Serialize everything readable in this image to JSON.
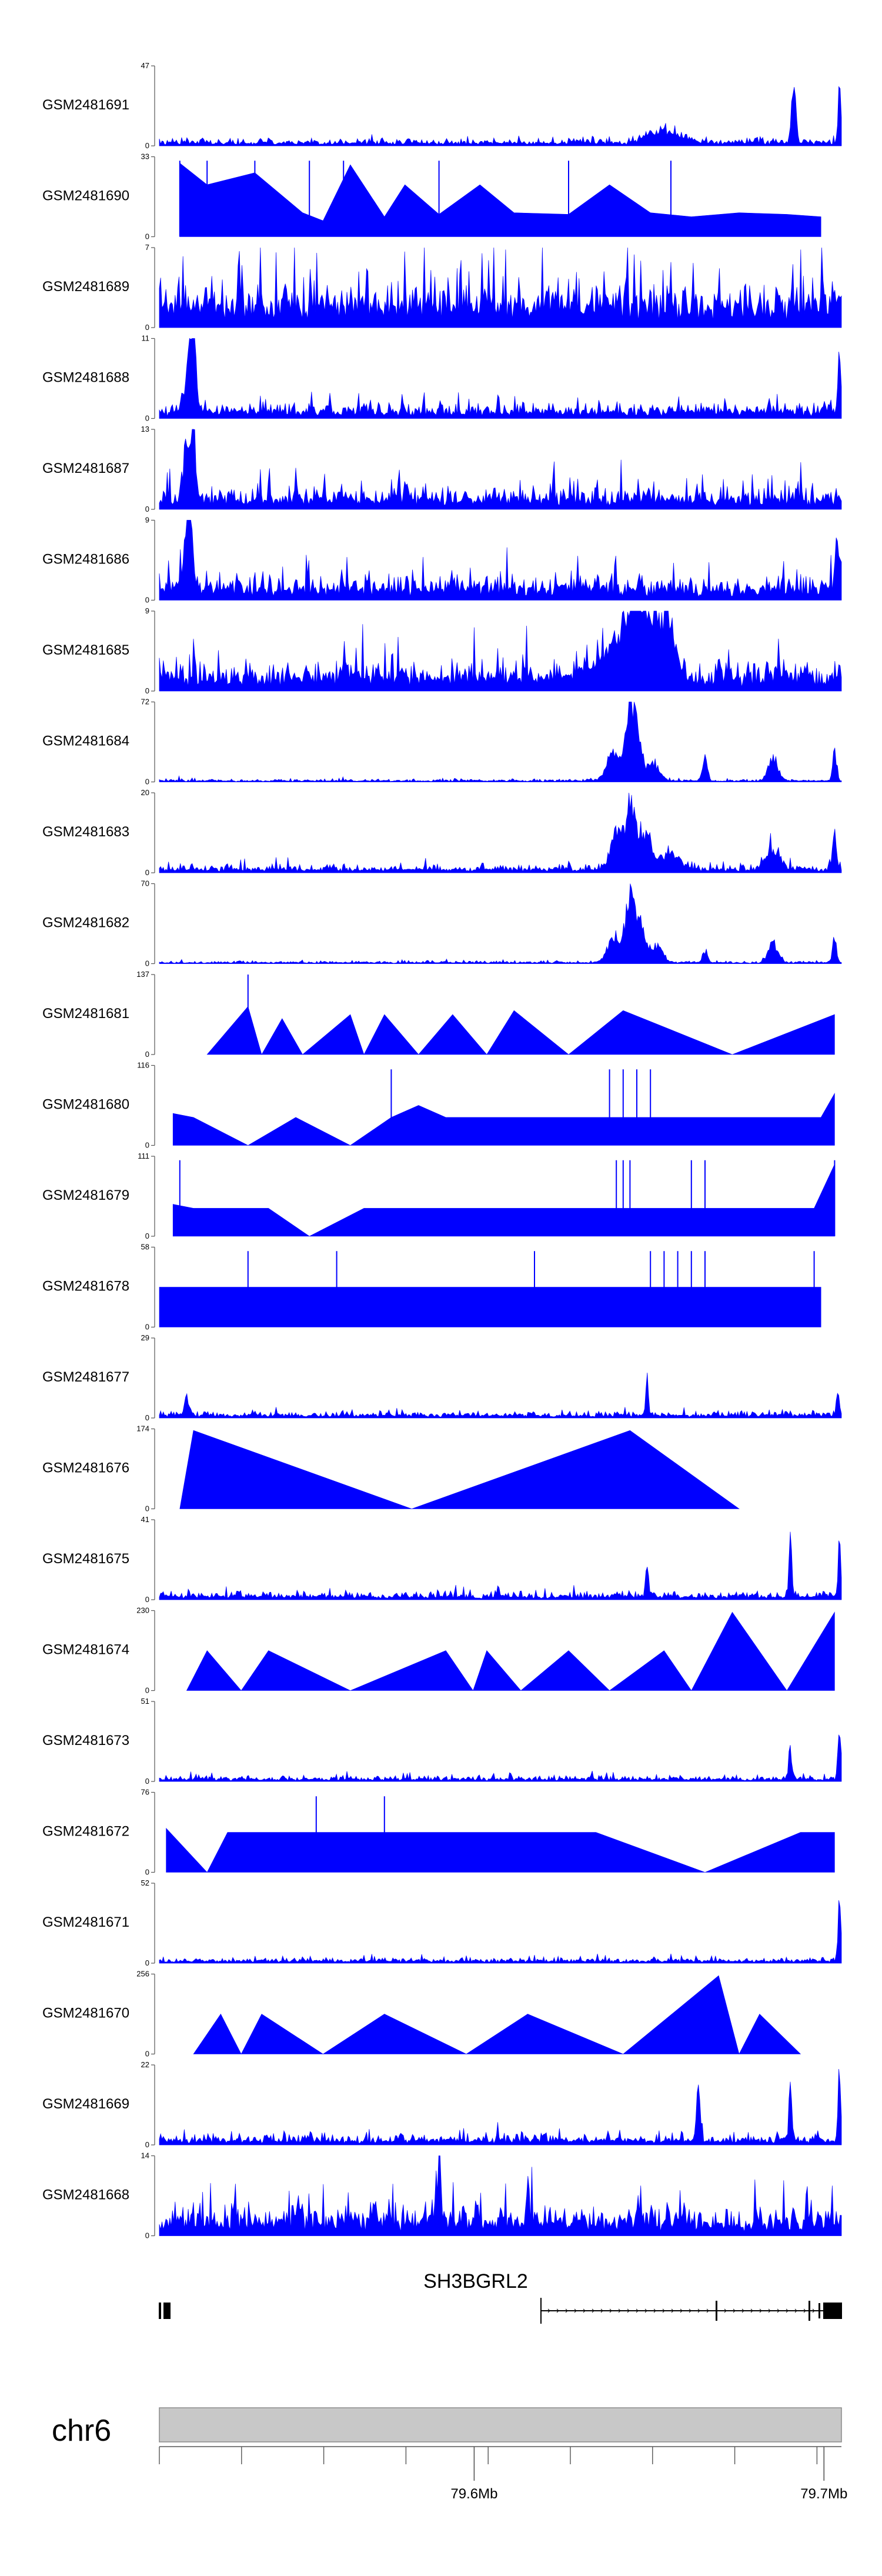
{
  "chart_data": {
    "type": "area",
    "title": "",
    "xlabel": "",
    "ylabel": "",
    "chromosome": "chr6",
    "xlim": [
      79.51,
      79.705
    ],
    "x_axis": {
      "unit": "Mb",
      "major_ticks": [
        {
          "value": 79.6,
          "label": "79.6Mb"
        },
        {
          "value": 79.7,
          "label": "79.7Mb"
        }
      ]
    },
    "gene": {
      "name": "SH3BGRL2"
    },
    "styles": {
      "signal_color": "#0000ff",
      "ideogram_color": "#c8c8c8",
      "axis_color": "#555555"
    },
    "series": [
      {
        "name": "GSM2481691",
        "ymax": 47,
        "ymax_label": "47",
        "ymin_label": "0",
        "style": "noise",
        "base": 0.06,
        "noise": 0.05,
        "peaks": [
          [
            0.72,
            0.015,
            0.15
          ],
          [
            0.74,
            0.01,
            0.15
          ],
          [
            0.765,
            0.02,
            0.12
          ],
          [
            0.93,
            0.004,
            0.97
          ],
          [
            0.997,
            0.003,
            0.8
          ]
        ]
      },
      {
        "name": "GSM2481690",
        "ymax": 33,
        "ymax_label": "33",
        "ymin_label": "0",
        "style": "triangles",
        "spikes": [
          0.03,
          0.07,
          0.14,
          0.22,
          0.27,
          0.41,
          0.6,
          0.75
        ],
        "spikeHeight": 0.95
      },
      {
        "name": "GSM2481689",
        "ymax": 7,
        "ymax_label": "7",
        "ymin_label": "0",
        "style": "noise",
        "base": 0.35,
        "noise": 0.45,
        "peaks": []
      },
      {
        "name": "GSM2481688",
        "ymax": 11,
        "ymax_label": "11",
        "ymin_label": "0",
        "style": "noise",
        "base": 0.12,
        "noise": 0.12,
        "peaks": [
          [
            0.045,
            0.01,
            0.8
          ],
          [
            0.05,
            0.005,
            0.9
          ],
          [
            0.997,
            0.003,
            0.98
          ]
        ]
      },
      {
        "name": "GSM2481687",
        "ymax": 13,
        "ymax_label": "13",
        "ymin_label": "0",
        "style": "noise",
        "base": 0.18,
        "noise": 0.2,
        "peaks": [
          [
            0.04,
            0.008,
            0.8
          ],
          [
            0.05,
            0.005,
            0.9
          ]
        ]
      },
      {
        "name": "GSM2481686",
        "ymax": 9,
        "ymax_label": "9",
        "ymin_label": "0",
        "style": "noise",
        "base": 0.18,
        "noise": 0.22,
        "peaks": [
          [
            0.04,
            0.008,
            0.7
          ],
          [
            0.045,
            0.005,
            0.95
          ],
          [
            0.995,
            0.005,
            0.9
          ]
        ]
      },
      {
        "name": "GSM2481685",
        "ymax": 9,
        "ymax_label": "9",
        "ymin_label": "0",
        "style": "noise",
        "base": 0.22,
        "noise": 0.28,
        "peaks": [
          [
            0.68,
            0.05,
            0.5
          ],
          [
            0.7,
            0.02,
            0.8
          ],
          [
            0.74,
            0.02,
            0.9
          ]
        ]
      },
      {
        "name": "GSM2481684",
        "ymax": 72,
        "ymax_label": "72",
        "ymin_label": "0",
        "style": "noise",
        "base": 0.02,
        "noise": 0.02,
        "peaks": [
          [
            0.665,
            0.012,
            0.45
          ],
          [
            0.69,
            0.01,
            0.95
          ],
          [
            0.7,
            0.012,
            0.55
          ],
          [
            0.725,
            0.012,
            0.25
          ],
          [
            0.8,
            0.005,
            0.35
          ],
          [
            0.9,
            0.01,
            0.35
          ],
          [
            0.99,
            0.004,
            0.5
          ]
        ]
      },
      {
        "name": "GSM2481683",
        "ymax": 20,
        "ymax_label": "20",
        "ymin_label": "0",
        "style": "noise",
        "base": 0.06,
        "noise": 0.06,
        "peaks": [
          [
            0.67,
            0.012,
            0.55
          ],
          [
            0.69,
            0.01,
            0.98
          ],
          [
            0.71,
            0.015,
            0.55
          ],
          [
            0.75,
            0.02,
            0.25
          ],
          [
            0.9,
            0.015,
            0.35
          ],
          [
            0.99,
            0.004,
            0.5
          ]
        ]
      },
      {
        "name": "GSM2481682",
        "ymax": 70,
        "ymax_label": "70",
        "ymin_label": "0",
        "style": "noise",
        "base": 0.02,
        "noise": 0.02,
        "peaks": [
          [
            0.665,
            0.012,
            0.4
          ],
          [
            0.69,
            0.01,
            0.97
          ],
          [
            0.705,
            0.012,
            0.55
          ],
          [
            0.73,
            0.012,
            0.25
          ],
          [
            0.8,
            0.005,
            0.2
          ],
          [
            0.9,
            0.01,
            0.3
          ],
          [
            0.99,
            0.004,
            0.4
          ]
        ]
      },
      {
        "name": "GSM2481681",
        "ymax": 137,
        "ymax_label": "137",
        "ymin_label": "0",
        "style": "triangles",
        "spikes": [
          0.13
        ],
        "spikeHeight": 1.0
      },
      {
        "name": "GSM2481680",
        "ymax": 116,
        "ymax_label": "116",
        "ymin_label": "0",
        "style": "triangles",
        "spikes": [
          0.34,
          0.66,
          0.68,
          0.7,
          0.72
        ],
        "spikeHeight": 0.95
      },
      {
        "name": "GSM2481679",
        "ymax": 111,
        "ymax_label": "111",
        "ymin_label": "0",
        "style": "triangles",
        "spikes": [
          0.03,
          0.67,
          0.68,
          0.69,
          0.78,
          0.8,
          0.99
        ],
        "spikeHeight": 0.95
      },
      {
        "name": "GSM2481678",
        "ymax": 58,
        "ymax_label": "58",
        "ymin_label": "0",
        "style": "triangles",
        "spikes": [
          0.13,
          0.26,
          0.55,
          0.72,
          0.74,
          0.76,
          0.78,
          0.8,
          0.96
        ],
        "spikeHeight": 0.95
      },
      {
        "name": "GSM2481677",
        "ymax": 29,
        "ymax_label": "29",
        "ymin_label": "0",
        "style": "noise",
        "base": 0.05,
        "noise": 0.05,
        "peaks": [
          [
            0.04,
            0.005,
            0.3
          ],
          [
            0.715,
            0.002,
            0.97
          ],
          [
            0.995,
            0.003,
            0.4
          ]
        ]
      },
      {
        "name": "GSM2481676",
        "ymax": 174,
        "ymax_label": "174",
        "ymin_label": "0",
        "style": "triangles",
        "spikes": [],
        "spikeHeight": 1.0
      },
      {
        "name": "GSM2481675",
        "ymax": 41,
        "ymax_label": "41",
        "ymin_label": "0",
        "style": "noise",
        "base": 0.06,
        "noise": 0.06,
        "peaks": [
          [
            0.715,
            0.003,
            0.5
          ],
          [
            0.925,
            0.003,
            0.97
          ],
          [
            0.997,
            0.003,
            0.8
          ]
        ]
      },
      {
        "name": "GSM2481674",
        "ymax": 230,
        "ymax_label": "230",
        "ymin_label": "0",
        "style": "triangles",
        "spikes": [],
        "spikeHeight": 1.0
      },
      {
        "name": "GSM2481673",
        "ymax": 51,
        "ymax_label": "51",
        "ymin_label": "0",
        "style": "noise",
        "base": 0.04,
        "noise": 0.04,
        "peaks": [
          [
            0.925,
            0.003,
            0.6
          ],
          [
            0.997,
            0.003,
            0.98
          ]
        ]
      },
      {
        "name": "GSM2481672",
        "ymax": 76,
        "ymax_label": "76",
        "ymin_label": "0",
        "style": "triangles",
        "spikes": [
          0.23,
          0.33
        ],
        "spikeHeight": 0.95
      },
      {
        "name": "GSM2481671",
        "ymax": 52,
        "ymax_label": "52",
        "ymin_label": "0",
        "style": "noise",
        "base": 0.04,
        "noise": 0.04,
        "peaks": [
          [
            0.997,
            0.003,
            0.98
          ]
        ]
      },
      {
        "name": "GSM2481670",
        "ymax": 256,
        "ymax_label": "256",
        "ymin_label": "0",
        "style": "triangles",
        "spikes": [],
        "spikeHeight": 1.0
      },
      {
        "name": "GSM2481669",
        "ymax": 22,
        "ymax_label": "22",
        "ymin_label": "0",
        "style": "noise",
        "base": 0.08,
        "noise": 0.08,
        "peaks": [
          [
            0.79,
            0.004,
            0.75
          ],
          [
            0.925,
            0.003,
            0.9
          ],
          [
            0.997,
            0.003,
            0.98
          ]
        ]
      },
      {
        "name": "GSM2481668",
        "ymax": 14,
        "ymax_label": "14",
        "ymin_label": "0",
        "style": "noise",
        "base": 0.22,
        "noise": 0.3,
        "peaks": [
          [
            0.41,
            0.003,
            0.97
          ],
          [
            0.54,
            0.003,
            0.65
          ]
        ]
      }
    ]
  }
}
